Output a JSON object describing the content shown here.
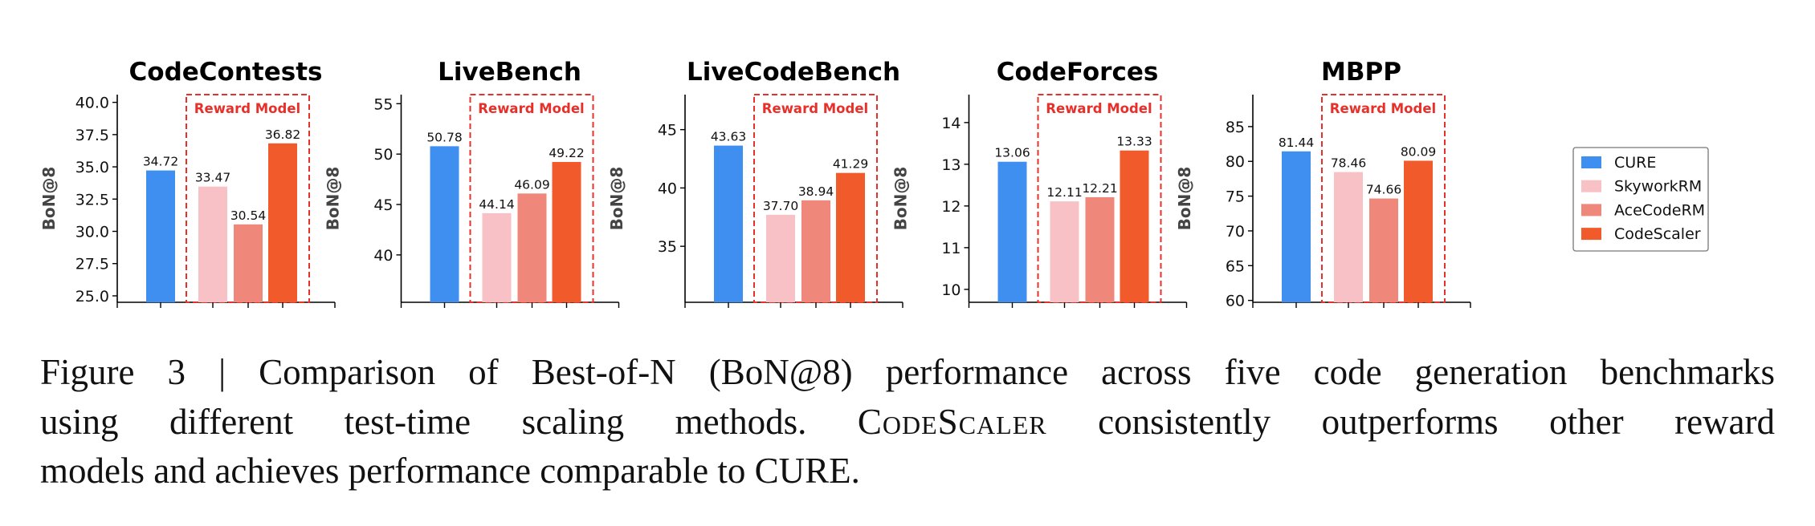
{
  "colors": {
    "CURE": "#3f8ff0",
    "SkyworkRM": "#f7c1c6",
    "AceCodeRM": "#ef877a",
    "CodeScaler": "#f15a2a",
    "reward_box": "#e8302a"
  },
  "legend": {
    "placement": "right",
    "entries": [
      "CURE",
      "SkyworkRM",
      "AceCodeRM",
      "CodeScaler"
    ]
  },
  "chart_data": [
    {
      "type": "bar",
      "title": "CodeContests",
      "ylabel": "BoN@8",
      "ylim": [
        24.5,
        40.6
      ],
      "yticks": [
        "25.0",
        "27.5",
        "30.0",
        "32.5",
        "35.0",
        "37.5",
        "40.0"
      ],
      "annotation": "Reward Model",
      "grid": false,
      "series": [
        {
          "name": "CURE",
          "value": 34.72,
          "label": "34.72"
        },
        {
          "name": "SkyworkRM",
          "value": 33.47,
          "label": "33.47"
        },
        {
          "name": "AceCodeRM",
          "value": 30.54,
          "label": "30.54"
        },
        {
          "name": "CodeScaler",
          "value": 36.82,
          "label": "36.82"
        }
      ]
    },
    {
      "type": "bar",
      "title": "LiveBench",
      "ylabel": "BoN@8",
      "ylim": [
        35.3,
        55.9
      ],
      "yticks": [
        "40",
        "45",
        "50",
        "55"
      ],
      "annotation": "Reward Model",
      "grid": false,
      "series": [
        {
          "name": "CURE",
          "value": 50.78,
          "label": "50.78"
        },
        {
          "name": "SkyworkRM",
          "value": 44.14,
          "label": "44.14"
        },
        {
          "name": "AceCodeRM",
          "value": 46.09,
          "label": "46.09"
        },
        {
          "name": "CodeScaler",
          "value": 49.22,
          "label": "49.22"
        }
      ]
    },
    {
      "type": "bar",
      "title": "LiveCodeBench",
      "ylabel": "BoN@8",
      "ylim": [
        30.2,
        48.0
      ],
      "yticks": [
        "35",
        "40",
        "45"
      ],
      "annotation": "Reward Model",
      "grid": false,
      "series": [
        {
          "name": "CURE",
          "value": 43.63,
          "label": "43.63"
        },
        {
          "name": "SkyworkRM",
          "value": 37.7,
          "label": "37.70"
        },
        {
          "name": "AceCodeRM",
          "value": 38.94,
          "label": "38.94"
        },
        {
          "name": "CodeScaler",
          "value": 41.29,
          "label": "41.29"
        }
      ]
    },
    {
      "type": "bar",
      "title": "CodeForces",
      "ylabel": "BoN@8",
      "ylim": [
        9.69,
        14.67
      ],
      "yticks": [
        "10",
        "11",
        "12",
        "13",
        "14"
      ],
      "annotation": "Reward Model",
      "grid": false,
      "series": [
        {
          "name": "CURE",
          "value": 13.06,
          "label": "13.06"
        },
        {
          "name": "SkyworkRM",
          "value": 12.11,
          "label": "12.11"
        },
        {
          "name": "AceCodeRM",
          "value": 12.21,
          "label": "12.21"
        },
        {
          "name": "CodeScaler",
          "value": 13.33,
          "label": "13.33"
        }
      ]
    },
    {
      "type": "bar",
      "title": "MBPP",
      "ylabel": "BoN@8",
      "ylim": [
        59.73,
        89.6
      ],
      "yticks": [
        "60",
        "65",
        "70",
        "75",
        "80",
        "85"
      ],
      "annotation": "Reward Model",
      "grid": false,
      "series": [
        {
          "name": "CURE",
          "value": 81.44,
          "label": "81.44"
        },
        {
          "name": "SkyworkRM",
          "value": 78.46,
          "label": "78.46"
        },
        {
          "name": "AceCodeRM",
          "value": 74.66,
          "label": "74.66"
        },
        {
          "name": "CodeScaler",
          "value": 80.09,
          "label": "80.09"
        }
      ]
    }
  ],
  "caption": {
    "line1": "Figure 3 | Comparison of Best-of-N (BoN@8) performance across five code generation benchmarks",
    "line2a": "using different test-time scaling methods.",
    "line2b": "CodeScaler",
    "line2c": "consistently outperforms other reward",
    "line3": "models and achieves performance comparable to CURE."
  }
}
